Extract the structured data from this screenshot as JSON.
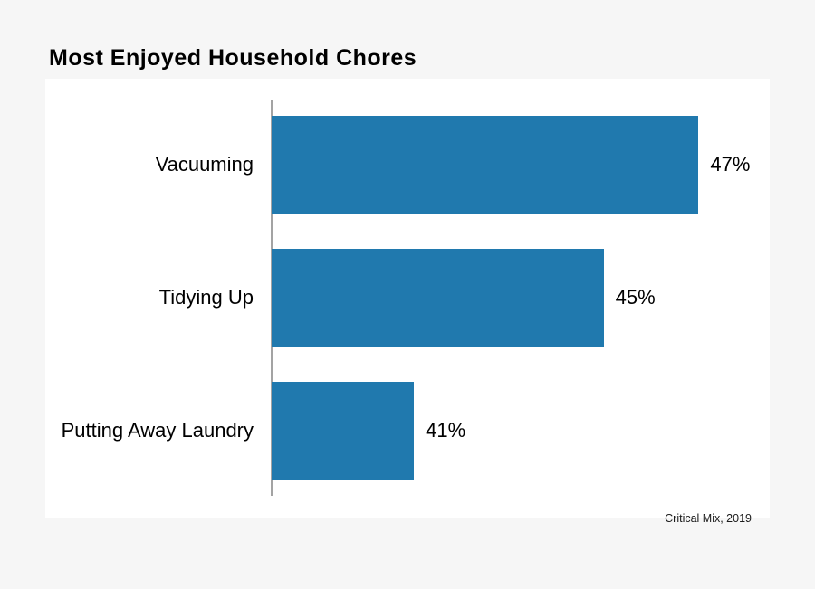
{
  "chart_data": {
    "type": "bar",
    "orientation": "horizontal",
    "title": "Most Enjoyed Household Chores",
    "categories": [
      "Vacuuming",
      "Tidying Up",
      "Putting Away Laundry"
    ],
    "values": [
      47,
      45,
      41
    ],
    "value_labels": [
      "47%",
      "45%",
      "41%"
    ],
    "unit": "%",
    "xlim": [
      38,
      48.5
    ],
    "grid": false,
    "legend": false,
    "source": "Critical Mix, 2019",
    "colors": {
      "bar": "#2079ae",
      "axis_line": "#a3a3a3",
      "page_background": "#f6f6f6",
      "card_background": "#ffffff",
      "text": "#000000"
    }
  }
}
